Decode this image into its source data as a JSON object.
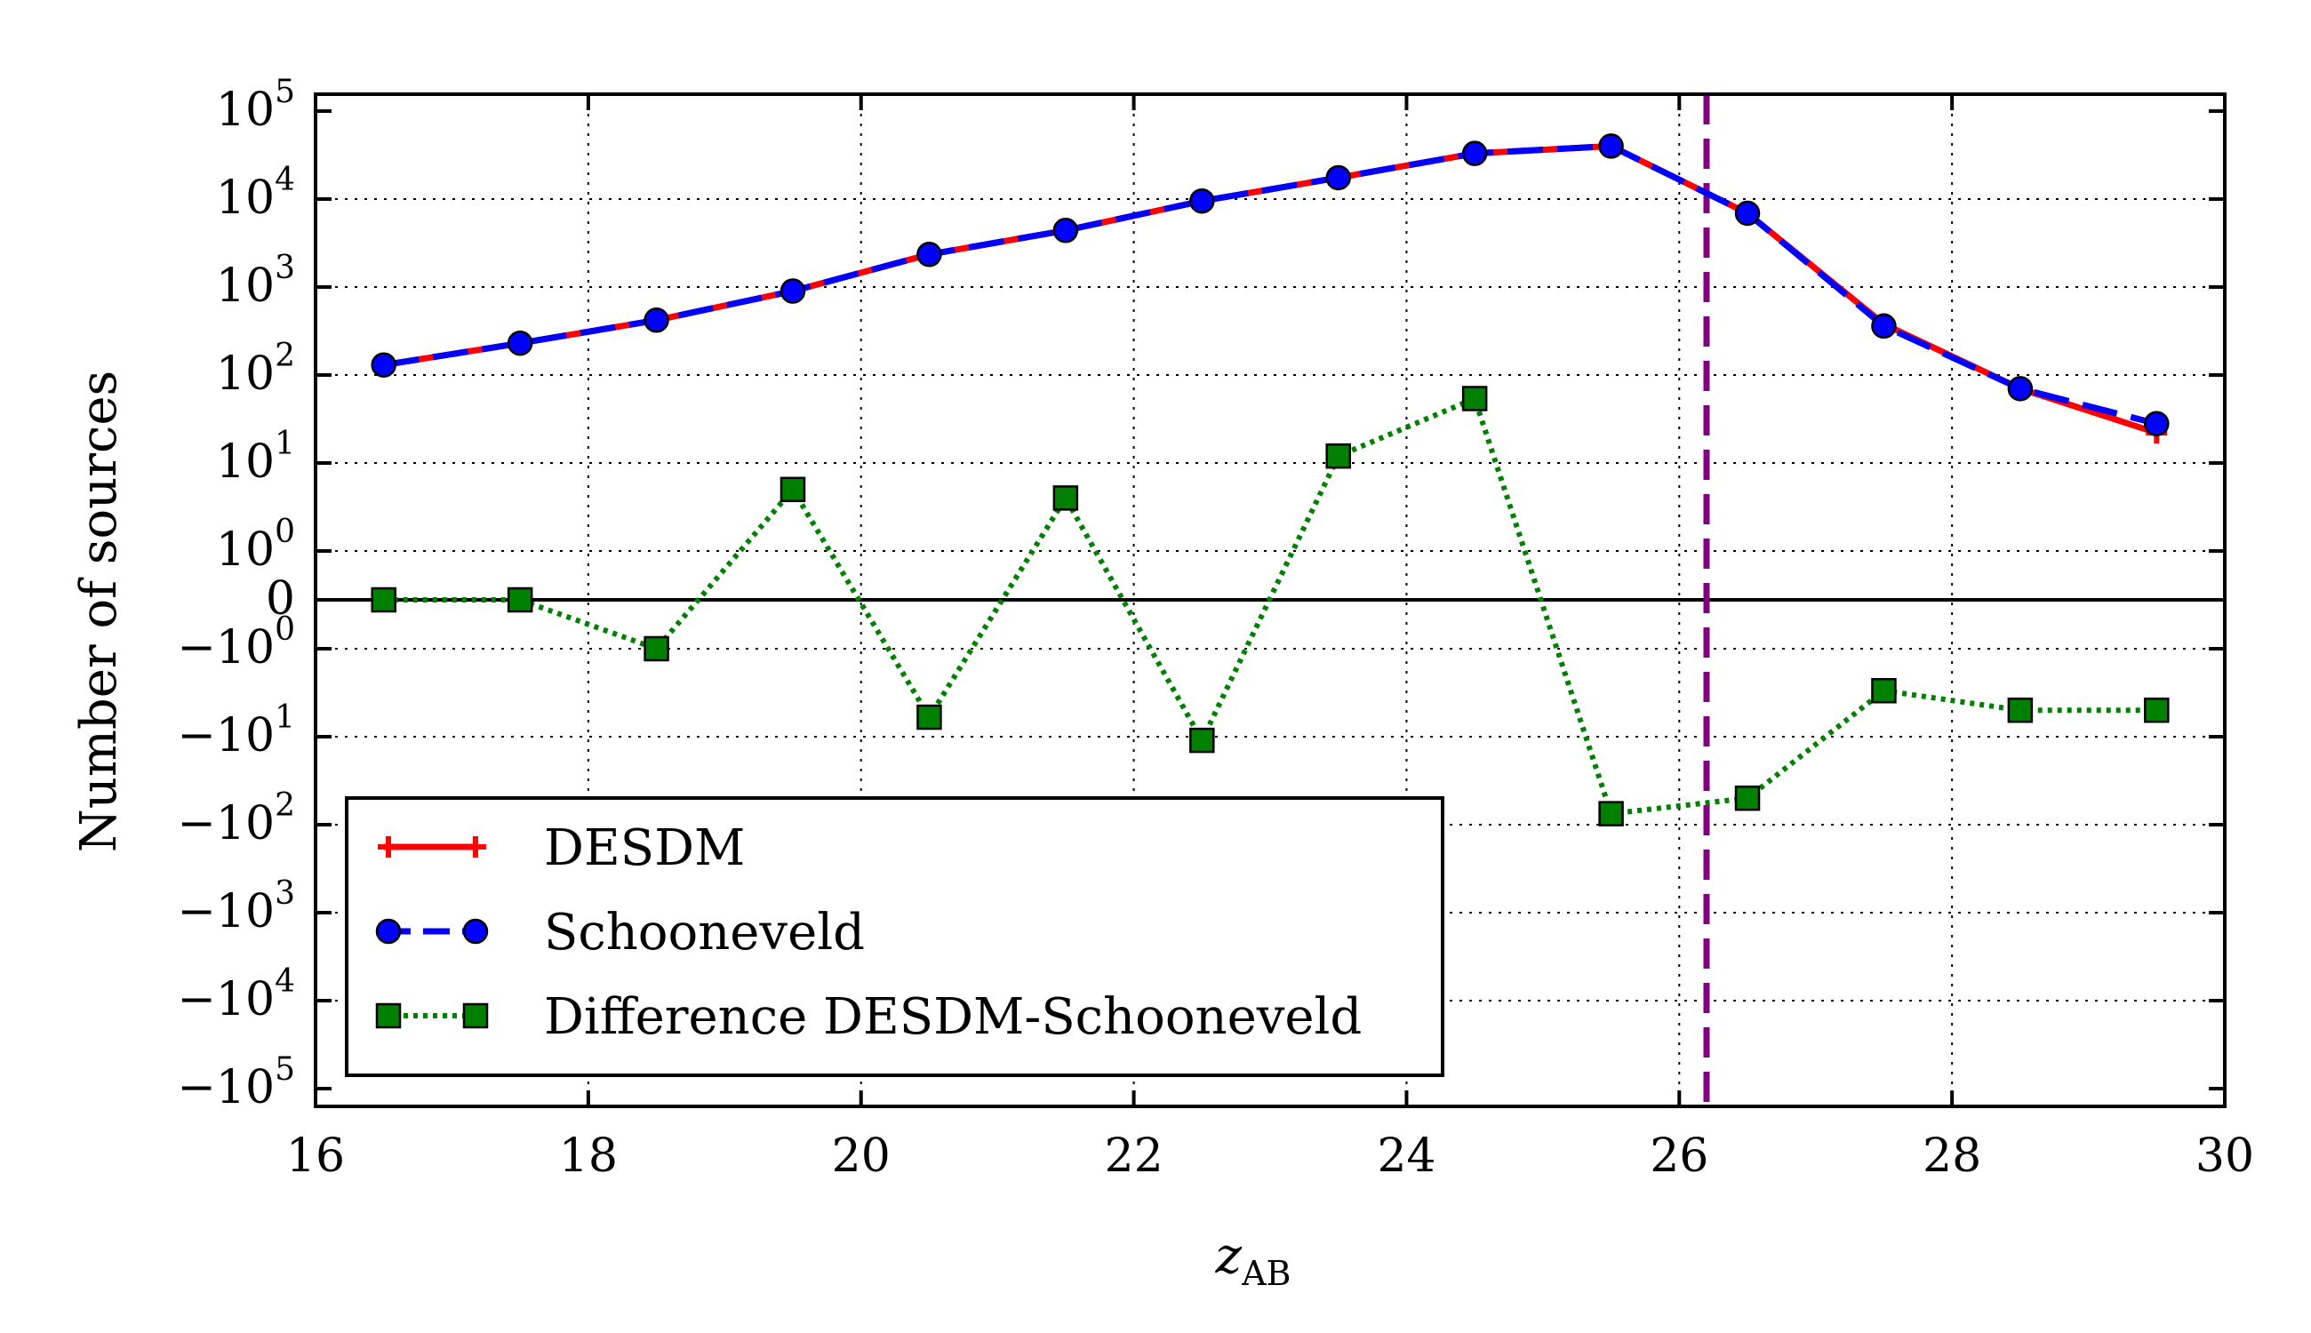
{
  "chart_data": {
    "type": "line",
    "xlabel_main": "z",
    "xlabel_sub": "AB",
    "ylabel": "Number of sources",
    "yscale": "symlog",
    "xlim": [
      16,
      30
    ],
    "ylim": [
      -100000,
      100000
    ],
    "grid": true,
    "legend_position": "bottom-left",
    "x_ticks": [
      "16",
      "18",
      "20",
      "22",
      "24",
      "26",
      "28",
      "30"
    ],
    "y_ticks": [
      {
        "value": 100000,
        "sign": "",
        "base": "10",
        "exp": "5"
      },
      {
        "value": 10000,
        "sign": "",
        "base": "10",
        "exp": "4"
      },
      {
        "value": 1000,
        "sign": "",
        "base": "10",
        "exp": "3"
      },
      {
        "value": 100,
        "sign": "",
        "base": "10",
        "exp": "2"
      },
      {
        "value": 10,
        "sign": "",
        "base": "10",
        "exp": "1"
      },
      {
        "value": 1,
        "sign": "",
        "base": "10",
        "exp": "0"
      },
      {
        "value": 0,
        "sign": "",
        "base": "0",
        "exp": ""
      },
      {
        "value": -1,
        "sign": "−",
        "base": "10",
        "exp": "0"
      },
      {
        "value": -10,
        "sign": "−",
        "base": "10",
        "exp": "1"
      },
      {
        "value": -100,
        "sign": "−",
        "base": "10",
        "exp": "2"
      },
      {
        "value": -1000,
        "sign": "−",
        "base": "10",
        "exp": "3"
      },
      {
        "value": -10000,
        "sign": "−",
        "base": "10",
        "exp": "4"
      },
      {
        "value": -100000,
        "sign": "−",
        "base": "10",
        "exp": "5"
      }
    ],
    "vline": {
      "x": 26.2,
      "color": "#800080"
    },
    "series": [
      {
        "name": "DESDM",
        "color": "#ff0000",
        "marker": "plus",
        "style": "solid",
        "x": [
          16.5,
          17.5,
          18.5,
          19.5,
          20.5,
          21.5,
          22.5,
          23.5,
          24.5,
          25.5,
          26.5,
          27.5,
          28.5,
          29.5
        ],
        "y": [
          130,
          230,
          420,
          900,
          2350,
          4400,
          9500,
          17500,
          33000,
          40000,
          6900,
          380,
          70,
          22
        ]
      },
      {
        "name": "Schooneveld",
        "color": "#0000ff",
        "marker": "circle",
        "style": "dashed",
        "x": [
          16.5,
          17.5,
          18.5,
          19.5,
          20.5,
          21.5,
          22.5,
          23.5,
          24.5,
          25.5,
          26.5,
          27.5,
          28.5,
          29.5
        ],
        "y": [
          130,
          230,
          420,
          900,
          2350,
          4400,
          9500,
          17500,
          33000,
          40000,
          6900,
          360,
          70,
          28
        ]
      },
      {
        "name": "Difference DESDM-Schooneveld",
        "color": "#008000",
        "marker": "square",
        "style": "dotted",
        "x": [
          16.5,
          17.5,
          18.5,
          19.5,
          20.5,
          21.5,
          22.5,
          23.5,
          24.5,
          25.5,
          26.5,
          27.5,
          28.5,
          29.5
        ],
        "y": [
          0,
          0,
          -1,
          5,
          -6,
          4,
          -11,
          12,
          54,
          -75,
          -50,
          -3,
          -5,
          -5
        ]
      }
    ]
  }
}
